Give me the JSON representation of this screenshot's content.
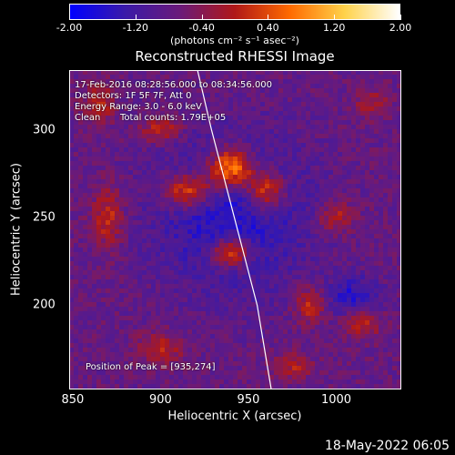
{
  "colorbar": {
    "tick_labels": [
      "-2.00",
      "-1.20",
      "-0.40",
      "0.40",
      "1.20",
      "2.00"
    ],
    "tick_values": [
      -2.0,
      -1.2,
      -0.4,
      0.4,
      1.2,
      2.0
    ],
    "range": [
      -2.0,
      2.0
    ],
    "units": "(photons cm⁻² s⁻¹ asec⁻²)",
    "colors": [
      "#0000ff",
      "#3a1aa8",
      "#6a1a7a",
      "#b01818",
      "#ff6a00",
      "#ffd24a",
      "#ffffff"
    ]
  },
  "chart_data": {
    "type": "heatmap",
    "title": "Reconstructed RHESSI Image",
    "xlabel": "Heliocentric X (arcsec)",
    "ylabel": "Heliocentric Y (arcsec)",
    "xlim": [
      848,
      1037
    ],
    "ylim": [
      152,
      334
    ],
    "x_ticks": [
      "850",
      "900",
      "950",
      "1000"
    ],
    "x_tick_values": [
      850,
      900,
      950,
      1000
    ],
    "y_ticks": [
      "200",
      "250",
      "300"
    ],
    "y_tick_values": [
      200,
      250,
      300
    ],
    "peak": {
      "x": 935,
      "y": 274
    },
    "limb_line": [
      [
        921,
        334
      ],
      [
        929,
        300
      ],
      [
        942,
        250
      ],
      [
        955,
        200
      ],
      [
        963,
        152
      ]
    ],
    "sources": [
      {
        "x": 940,
        "y": 278,
        "sx": 9,
        "sy": 8,
        "amp": 2.0
      },
      {
        "x": 916,
        "y": 265,
        "sx": 10,
        "sy": 7,
        "amp": 1.5
      },
      {
        "x": 960,
        "y": 265,
        "sx": 8,
        "sy": 8,
        "amp": 1.4
      },
      {
        "x": 940,
        "y": 230,
        "sx": 8,
        "sy": 6,
        "amp": 1.6
      },
      {
        "x": 900,
        "y": 300,
        "sx": 8,
        "sy": 5,
        "amp": 0.9
      },
      {
        "x": 870,
        "y": 250,
        "sx": 6,
        "sy": 12,
        "amp": 0.9
      },
      {
        "x": 1000,
        "y": 250,
        "sx": 7,
        "sy": 6,
        "amp": 0.8
      },
      {
        "x": 1015,
        "y": 190,
        "sx": 7,
        "sy": 6,
        "amp": 0.9
      },
      {
        "x": 985,
        "y": 200,
        "sx": 6,
        "sy": 7,
        "amp": 0.9
      },
      {
        "x": 900,
        "y": 175,
        "sx": 9,
        "sy": 6,
        "amp": 0.8
      },
      {
        "x": 975,
        "y": 165,
        "sx": 8,
        "sy": 5,
        "amp": 0.7
      },
      {
        "x": 865,
        "y": 315,
        "sx": 6,
        "sy": 8,
        "amp": 0.8
      },
      {
        "x": 1020,
        "y": 315,
        "sx": 7,
        "sy": 6,
        "amp": 0.6
      },
      {
        "x": 940,
        "y": 252,
        "sx": 30,
        "sy": 30,
        "amp": -0.9
      },
      {
        "x": 1010,
        "y": 205,
        "sx": 10,
        "sy": 8,
        "amp": -0.8
      }
    ]
  },
  "annotations": {
    "time_range": "17-Feb-2016 08:28:56.000 to 08:34:56.000",
    "detectors": "Detectors: 1F 5F 7F, Att 0",
    "energy_range": "Energy Range: 3.0 - 6.0 keV",
    "method": "Clean",
    "total_counts": "Total counts: 1.79E+05",
    "peak_position": "Position of Peak = [935,274]"
  },
  "footer": {
    "date": "18-May-2022 06:05"
  }
}
